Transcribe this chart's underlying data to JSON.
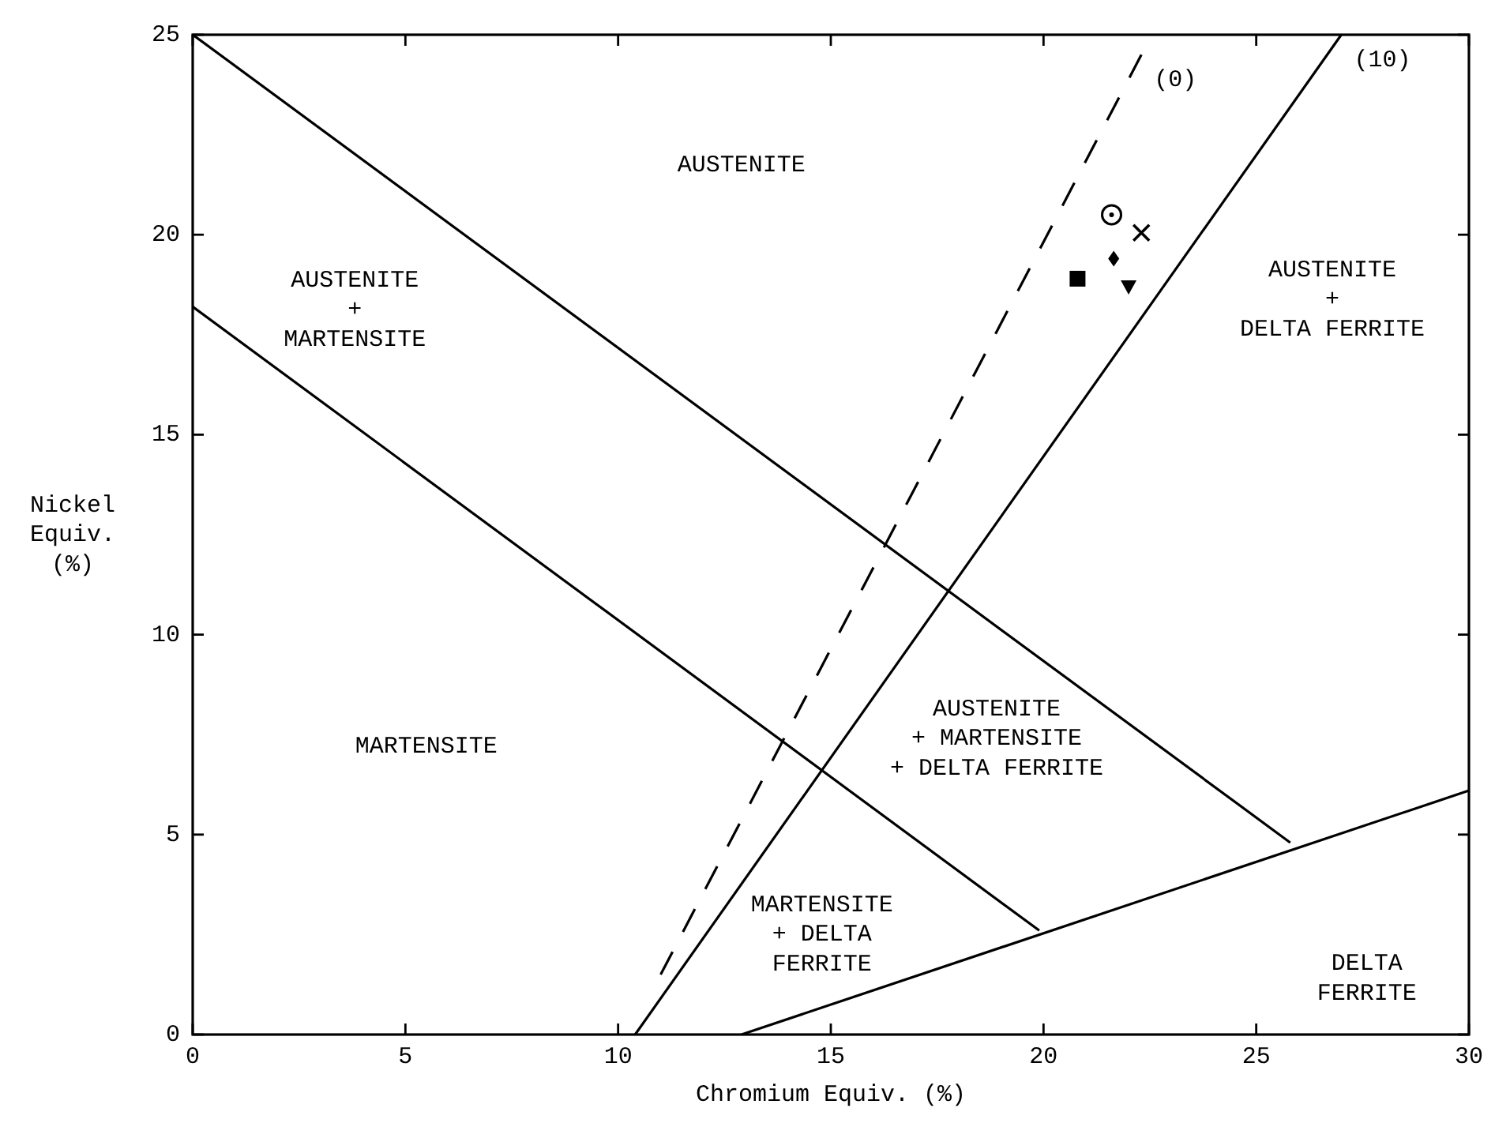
{
  "chart_data": {
    "type": "line",
    "xlabel": "Chromium Equiv. (%)",
    "ylabel": "Nickel\nEquiv.\n(%)",
    "xlim": [
      0,
      30
    ],
    "xticks": [
      0,
      5,
      10,
      15,
      20,
      25,
      30
    ],
    "ylim": [
      0,
      25
    ],
    "yticks": [
      0,
      5,
      10,
      15,
      20,
      25
    ],
    "grid": false,
    "legend": "top right",
    "series": [
      {
        "color": "#000000",
        "x": [
          0,
          25.8
        ],
        "values": [
          25,
          4.8
        ]
      },
      {
        "color": "#000000",
        "x": [
          0,
          19.9
        ],
        "values": [
          18.2,
          2.6
        ]
      },
      {
        "color": "#000000",
        "x": [
          12.9,
          30
        ],
        "values": [
          0,
          6.1
        ]
      },
      {
        "name": "(10)",
        "color": "#000000",
        "x": [
          10.4,
          27.0
        ],
        "values": [
          0,
          25
        ]
      },
      {
        "name": "(0)",
        "color": "#000000",
        "line_style": "dashed",
        "x": [
          11.0,
          22.3
        ],
        "values": [
          1.5,
          24.5
        ]
      },
      {
        "type": "scatter",
        "marker": "circle",
        "color": "#000000",
        "x": [
          21.6
        ],
        "values": [
          20.5
        ]
      },
      {
        "type": "scatter",
        "marker": "cross",
        "color": "#000000",
        "x": [
          22.3
        ],
        "values": [
          20.05
        ]
      },
      {
        "type": "scatter",
        "marker": "diamond",
        "color": "#000000",
        "x": [
          21.65
        ],
        "values": [
          19.4
        ]
      },
      {
        "type": "scatter",
        "marker": "square",
        "color": "#000000",
        "x": [
          20.8
        ],
        "values": [
          18.9
        ]
      },
      {
        "type": "scatter",
        "marker": "triangle",
        "color": "#000000",
        "x": [
          22.0
        ],
        "values": [
          18.7
        ]
      }
    ],
    "annotations": [
      "AUSTENITE",
      "AUSTENITE\n+\nMARTENSITE",
      "AUSTENITE\n+\nDELTA FERRITE",
      "MARTENSITE",
      "AUSTENITE\n+ MARTENSITE\n+ DELTA FERRITE",
      "MARTENSITE\n+ DELTA\nFERRITE",
      "DELTA\nFERRITE"
    ]
  }
}
